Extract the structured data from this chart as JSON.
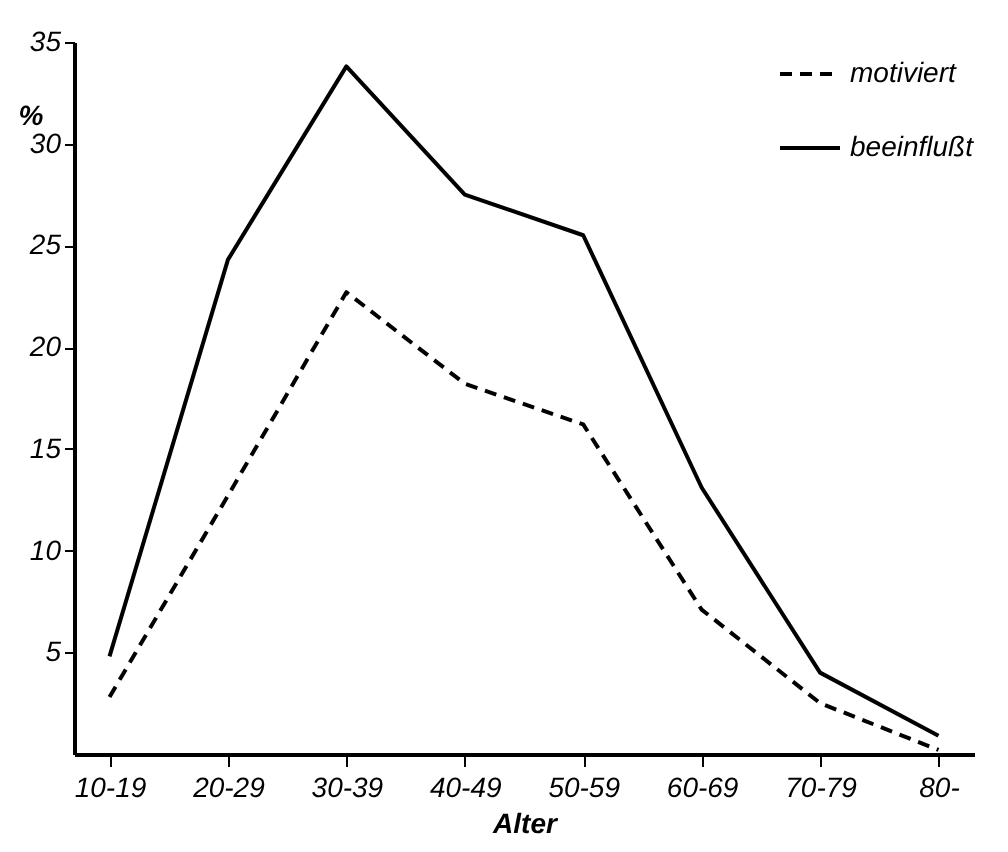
{
  "chart_data": {
    "type": "line",
    "xlabel": "Alter",
    "ylabel": "%",
    "categories": [
      "10-19",
      "20-29",
      "30-39",
      "40-49",
      "50-59",
      "60-69",
      "70-79",
      "80-"
    ],
    "series": [
      {
        "name": "motiviert",
        "color": "#000000",
        "line_style": "dashed",
        "values": [
          2.8,
          12.7,
          22.7,
          18.2,
          16.2,
          7.1,
          2.5,
          0.2
        ]
      },
      {
        "name": "beeinflußt",
        "color": "#000000",
        "line_style": "solid",
        "values": [
          4.8,
          24.3,
          33.8,
          27.5,
          25.5,
          13.1,
          4.0,
          0.9
        ]
      }
    ],
    "ylim": [
      0,
      35
    ],
    "yticks": [
      5,
      10,
      15,
      20,
      25,
      30,
      35
    ],
    "grid": false,
    "legend": "top right",
    "marker": "none"
  }
}
